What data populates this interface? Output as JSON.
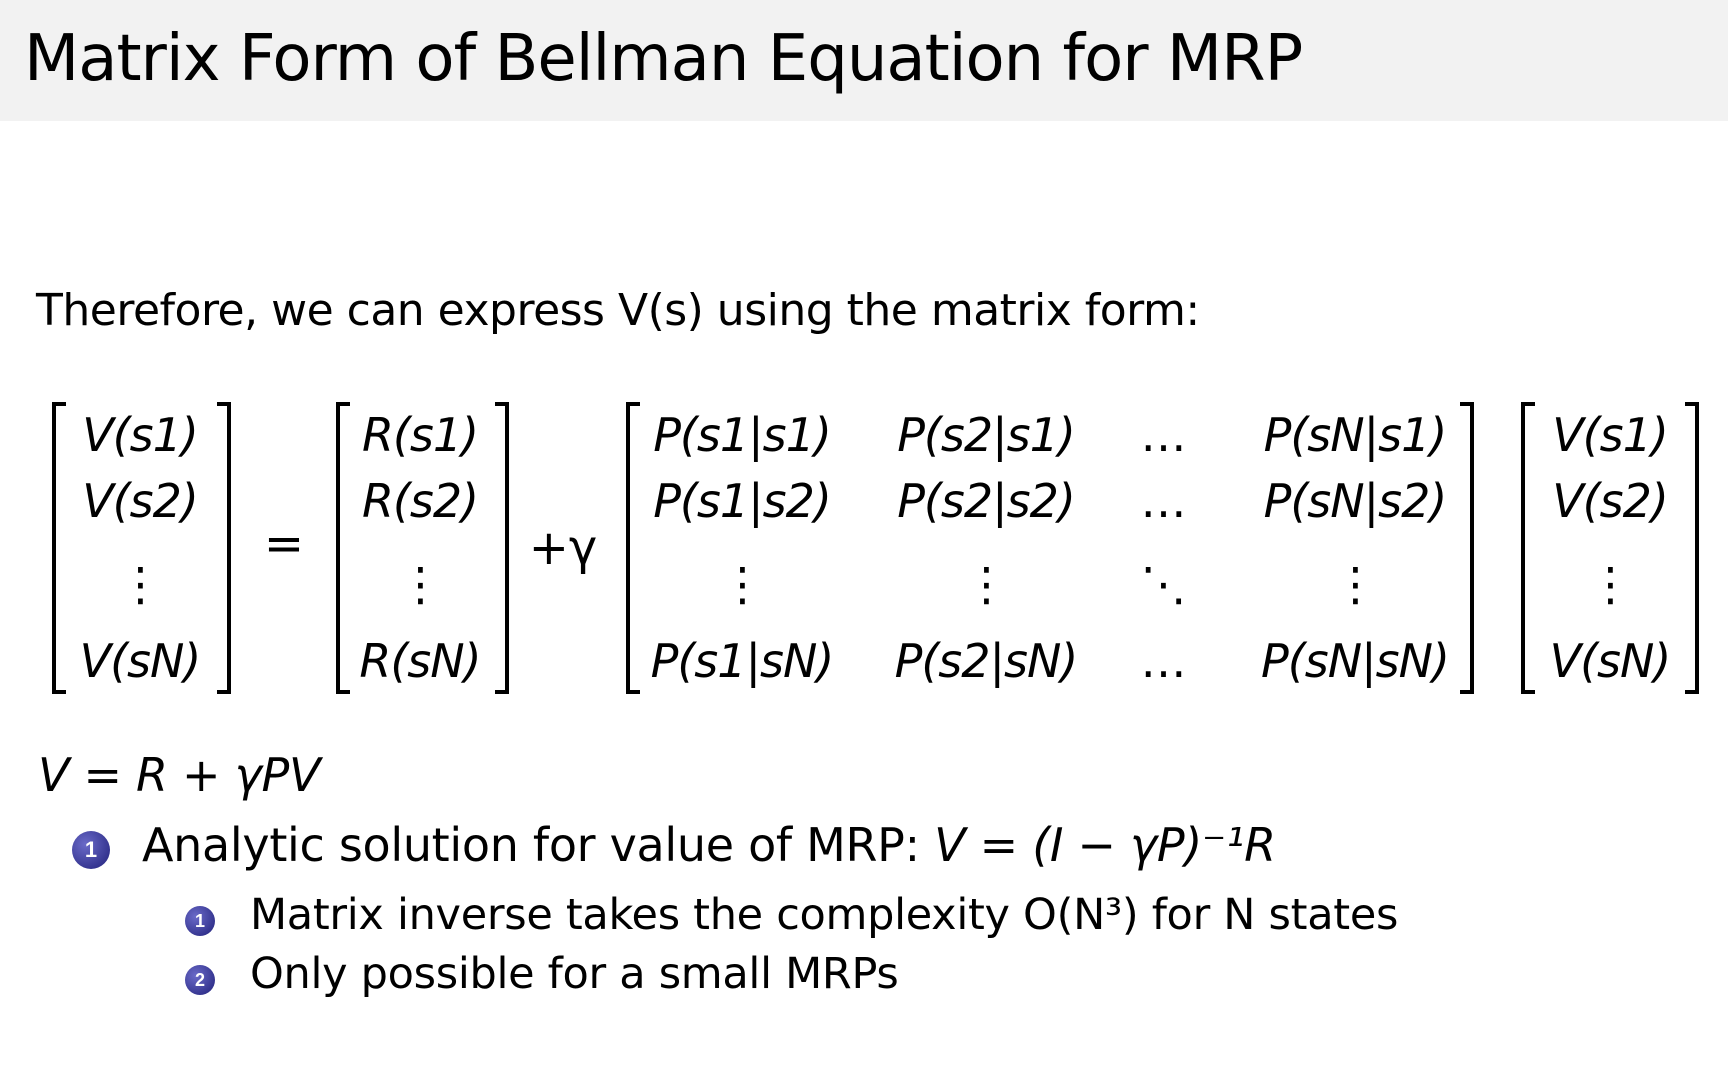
{
  "slide": {
    "title": "Matrix Form of Bellman Equation for MRP",
    "intro": "Therefore, we can express V(s) using the matrix form:",
    "equation": {
      "v_vector": [
        "V(s1)",
        "V(s2)",
        "⋮",
        "V(sN)"
      ],
      "equals": "=",
      "r_vector": [
        "R(s1)",
        "R(s2)",
        "⋮",
        "R(sN)"
      ],
      "plus_gamma": "+γ",
      "p_matrix": [
        [
          "P(s1|s1)",
          "P(s2|s1)",
          "…",
          "P(sN|s1)"
        ],
        [
          "P(s1|s2)",
          "P(s2|s2)",
          "…",
          "P(sN|s2)"
        ],
        [
          "⋮",
          "⋮",
          "⋱",
          "⋮"
        ],
        [
          "P(s1|sN)",
          "P(s2|sN)",
          "…",
          "P(sN|sN)"
        ]
      ]
    },
    "compact": "V = R + γPV",
    "bullets": [
      {
        "number": "1",
        "text": "Analytic solution for value of MRP: ",
        "math": "V = (I − γP)⁻¹R",
        "sub": [
          {
            "number": "1",
            "text": "Matrix inverse takes the complexity O(N³) for N states"
          },
          {
            "number": "2",
            "text": "Only possible for a small MRPs"
          }
        ]
      }
    ],
    "bullet_color": "#2b2b8c",
    "header_bg": "#f2f2f2"
  }
}
